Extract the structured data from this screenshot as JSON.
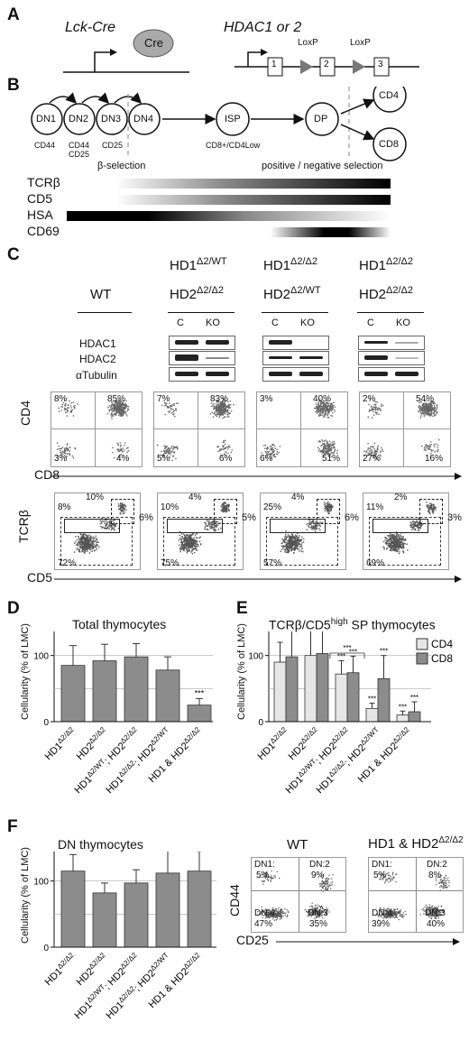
{
  "panel_labels": {
    "a": "A",
    "b": "B",
    "c": "C",
    "d": "D",
    "e": "E",
    "f": "F"
  },
  "panel_a": {
    "lck_cre": "Lck-Cre",
    "cre": "Cre",
    "hdac": "HDAC1 or 2",
    "loxp1": "LoxP",
    "loxp2": "LoxP",
    "exon1": "1",
    "exon2": "2",
    "exon3": "3"
  },
  "panel_b": {
    "stages": [
      "DN1",
      "DN2",
      "DN3",
      "DN4",
      "ISP",
      "DP",
      "CD4",
      "CD8"
    ],
    "markers": {
      "dn1": "CD44",
      "dn2a": "CD44",
      "dn2b": "CD25",
      "dn3": "CD25",
      "isp": "CD8+/CD4Low"
    },
    "beta_selection": "β-selection",
    "pos_neg": "positive / negative selection",
    "bars": [
      "TCRβ",
      "CD5",
      "HSA",
      "CD69"
    ]
  },
  "panel_c": {
    "wt": "WT",
    "genotypes": [
      {
        "l1": "HD1",
        "s1": "Δ2/WT",
        "l2": "HD2",
        "s2": "Δ2/Δ2"
      },
      {
        "l1": "HD1",
        "s1": "Δ2/Δ2",
        "l2": "HD2",
        "s2": "Δ2/WT"
      },
      {
        "l1": "HD1",
        "s1": "Δ2/Δ2",
        "l2": "HD2",
        "s2": "Δ2/Δ2"
      }
    ],
    "c": "C",
    "ko": "KO",
    "blot_rows": [
      "HDAC1",
      "HDAC2",
      "αTubulin"
    ],
    "cd4_axis": "CD4",
    "cd8_axis": "CD8",
    "cd4cd8": [
      {
        "tl": "8%",
        "tr": "85%",
        "bl": "3%",
        "br": "4%"
      },
      {
        "tl": "7%",
        "tr": "83%",
        "bl": "5%",
        "br": "6%"
      },
      {
        "tl": "3%",
        "tr": "40%",
        "bl": "6%",
        "br": "51%"
      },
      {
        "tl": "2%",
        "tr": "54%",
        "bl": "27%",
        "br": "16%"
      }
    ],
    "tcr_axis": "TCRβ",
    "cd5_axis": "CD5",
    "tcrcd5": [
      {
        "a": "8%",
        "b": "10%",
        "c": "6%",
        "d": "72%"
      },
      {
        "a": "10%",
        "b": "4%",
        "c": "5%",
        "d": "75%"
      },
      {
        "a": "25%",
        "b": "4%",
        "c": "6%",
        "d": "57%"
      },
      {
        "a": "11%",
        "b": "2%",
        "c": "3%",
        "d": "69%"
      }
    ]
  },
  "panel_d": {
    "title": "Total thymocytes",
    "ylabel": "Cellularity (% of LMC)",
    "sig": "***"
  },
  "panel_e": {
    "title_a": "TCRβ/CD5",
    "title_sup": "high",
    "title_b": " SP thymocytes",
    "ylabel": "Cellularity (% of LMC)",
    "legend": [
      "CD4",
      "CD8"
    ],
    "sig": "***"
  },
  "panel_f": {
    "title": "DN thymocytes",
    "ylabel": "Cellularity (% of LMC)",
    "wt": "WT",
    "ko_a": "HD1 & HD2",
    "ko_sup": "Δ2/Δ2",
    "cd44": "CD44",
    "cd25": "CD25",
    "wt_q": {
      "dn1": "DN1:",
      "dn1v": "5%",
      "dn2": "DN:2",
      "dn2v": "9%",
      "dn4": "DN:4",
      "dn4v": "47%",
      "dn3": "DN:3",
      "dn3v": "35%"
    },
    "ko_q": {
      "dn1": "DN1:",
      "dn1v": "5%",
      "dn2": "DN:2",
      "dn2v": "8%",
      "dn4": "DN:4",
      "dn4v": "39%",
      "dn3": "DN:3",
      "dn3v": "40%"
    }
  },
  "bar_xlabels": [
    {
      "main": "HD1",
      "sup": "Δ2/Δ2"
    },
    {
      "main": "HD2",
      "sup": "Δ2/Δ2"
    },
    {
      "main": "HD1",
      "sup": "Δ2/WT",
      "tail": "; HD2",
      "tsup": "Δ2/Δ2"
    },
    {
      "main": "HD1",
      "sup": "Δ2/Δ2",
      "tail": "; HD2",
      "tsup": "Δ2/WT"
    },
    {
      "main": "HD1 & HD2",
      "sup": "Δ2/Δ2"
    }
  ],
  "chart_data": [
    {
      "type": "bar",
      "title": "Total thymocytes",
      "ylabel": "Cellularity (% of LMC)",
      "ylim": [
        0,
        150
      ],
      "yticks": [
        0,
        100
      ],
      "categories": [
        "HD1Δ2/Δ2",
        "HD2Δ2/Δ2",
        "HD1Δ2/WT; HD2Δ2/Δ2",
        "HD1Δ2/Δ2; HD2Δ2/WT",
        "HD1 & HD2Δ2/Δ2"
      ],
      "values": [
        85,
        92,
        98,
        78,
        25
      ],
      "errors": [
        30,
        25,
        20,
        20,
        10
      ],
      "significance": [
        "",
        "",
        "",
        "",
        "***"
      ]
    },
    {
      "type": "bar",
      "title": "TCRβ/CD5high SP thymocytes",
      "ylabel": "Cellularity (% of LMC)",
      "ylim": [
        0,
        150
      ],
      "yticks": [
        0,
        100
      ],
      "categories": [
        "HD1Δ2/Δ2",
        "HD2Δ2/Δ2",
        "HD1Δ2/WT; HD2Δ2/Δ2",
        "HD1Δ2/Δ2; HD2Δ2/WT",
        "HD1 & HD2Δ2/Δ2"
      ],
      "series": [
        {
          "name": "CD4",
          "values": [
            90,
            100,
            72,
            20,
            10
          ],
          "errors": [
            30,
            40,
            20,
            8,
            6
          ]
        },
        {
          "name": "CD8",
          "values": [
            98,
            103,
            74,
            65,
            15
          ],
          "errors": [
            45,
            35,
            25,
            35,
            15
          ]
        }
      ],
      "significance": [
        "",
        "",
        "***",
        "***",
        "***"
      ],
      "legend": "top-right"
    },
    {
      "type": "bar",
      "title": "DN thymocytes",
      "ylabel": "Cellularity (% of LMC)",
      "ylim": [
        0,
        150
      ],
      "yticks": [
        0,
        100
      ],
      "categories": [
        "HD1Δ2/Δ2",
        "HD2Δ2/Δ2",
        "HD1Δ2/WT; HD2Δ2/Δ2",
        "HD1Δ2/Δ2; HD2Δ2/WT",
        "HD1 & HD2Δ2/Δ2"
      ],
      "values": [
        115,
        82,
        97,
        112,
        115
      ],
      "errors": [
        25,
        15,
        20,
        60,
        30
      ]
    }
  ]
}
